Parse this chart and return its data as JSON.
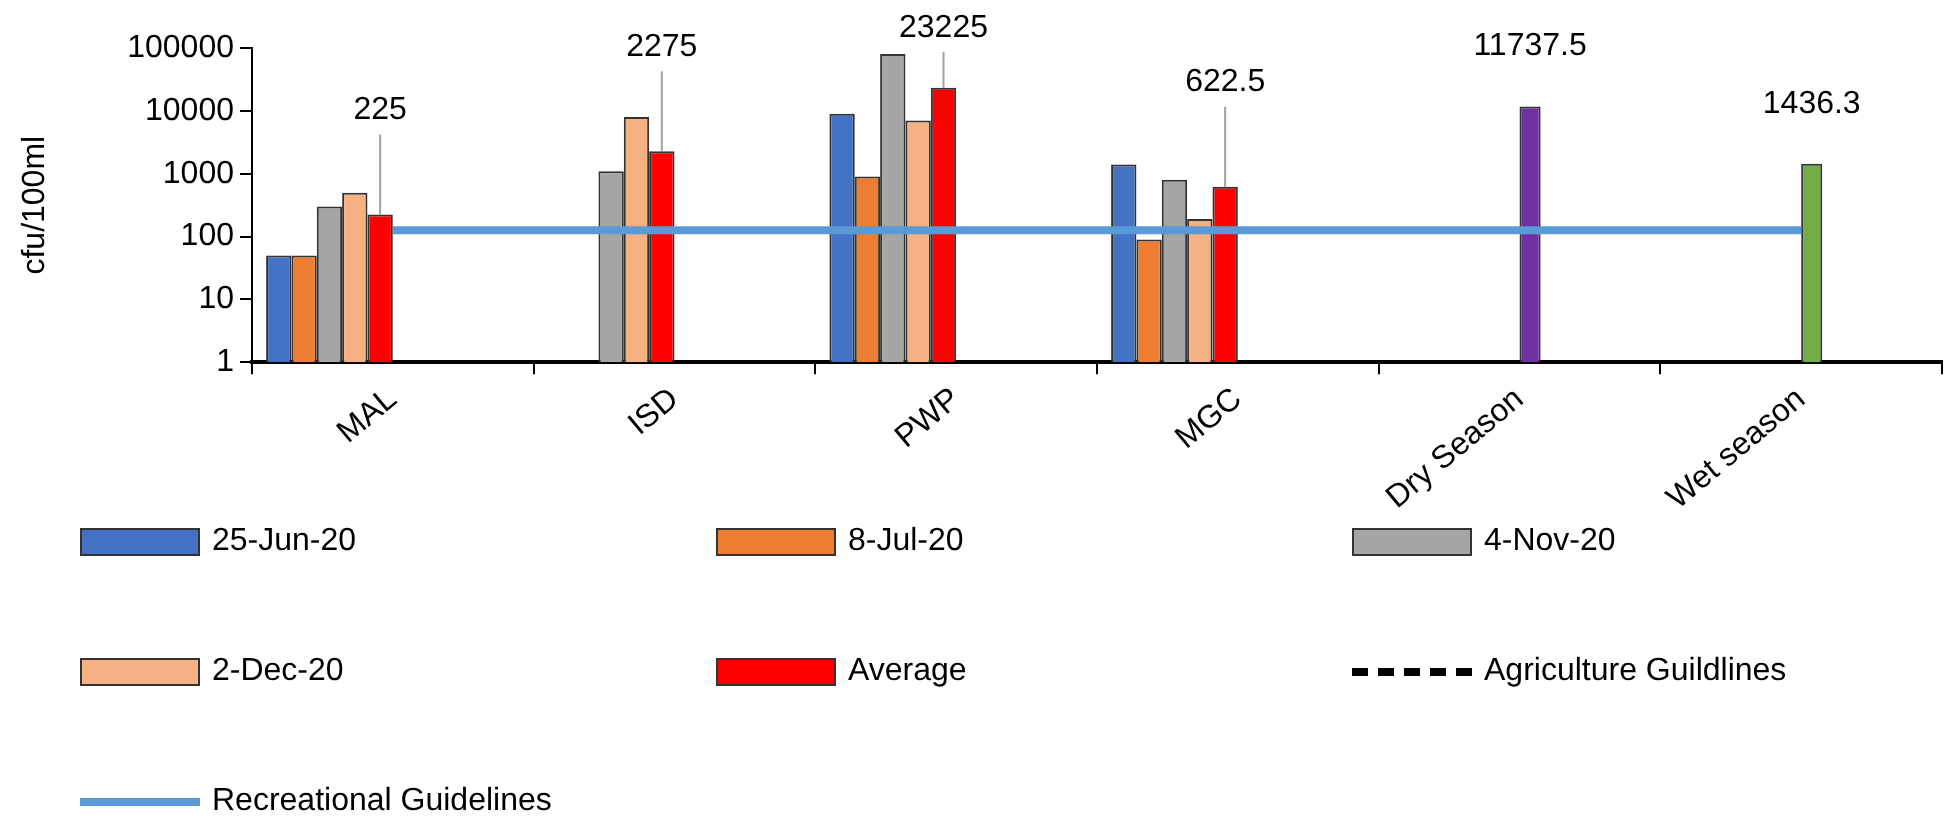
{
  "chart_data": {
    "type": "bar",
    "ylabel": "cfu/100ml",
    "log": true,
    "ylim": [
      1,
      100000
    ],
    "yticks": [
      1,
      10,
      100,
      1000,
      10000,
      100000
    ],
    "grid": false,
    "legend": "bottom",
    "categories": [
      "MAL",
      "ISD",
      "PWP",
      "MGC",
      "Dry Season",
      "Wet season"
    ],
    "series": [
      {
        "name": "25-Jun-20",
        "color": "#4472c4",
        "values": [
          50,
          null,
          9000,
          1400,
          null,
          null
        ]
      },
      {
        "name": "8-Jul-20",
        "color": "#ed7d31",
        "values": [
          50,
          null,
          900,
          90,
          null,
          null
        ]
      },
      {
        "name": "4-Nov-20",
        "color": "#a5a5a5",
        "values": [
          300,
          1100,
          80000,
          800,
          null,
          null
        ]
      },
      {
        "name": "2-Dec-20",
        "color": "#f4b183",
        "values": [
          500,
          8000,
          7000,
          190,
          null,
          null
        ]
      },
      {
        "name": "Average",
        "color": "#ff0000",
        "values": [
          225,
          2275,
          23225,
          622.5,
          null,
          null
        ],
        "value_labels": [
          "225",
          "2275",
          "23225",
          "622.5",
          null,
          null
        ]
      },
      {
        "name": "Agriculture Guildlines",
        "type": "line",
        "color": "#000000",
        "line_style": "dashed",
        "values": [
          null,
          null,
          null,
          null,
          null,
          null
        ]
      },
      {
        "colors": [
          null,
          null,
          null,
          null,
          "#7030a0",
          "#70ad47"
        ],
        "values": [
          null,
          null,
          null,
          null,
          11737.5,
          1436.3
        ],
        "value_labels": [
          null,
          null,
          null,
          null,
          "11737.5",
          "1436.3"
        ]
      },
      {
        "name": "Recreational Guidelines",
        "type": "line",
        "color": "#5b9bd5",
        "line_style": "solid",
        "values": [
          126,
          126,
          126,
          126,
          126,
          126
        ]
      }
    ]
  }
}
